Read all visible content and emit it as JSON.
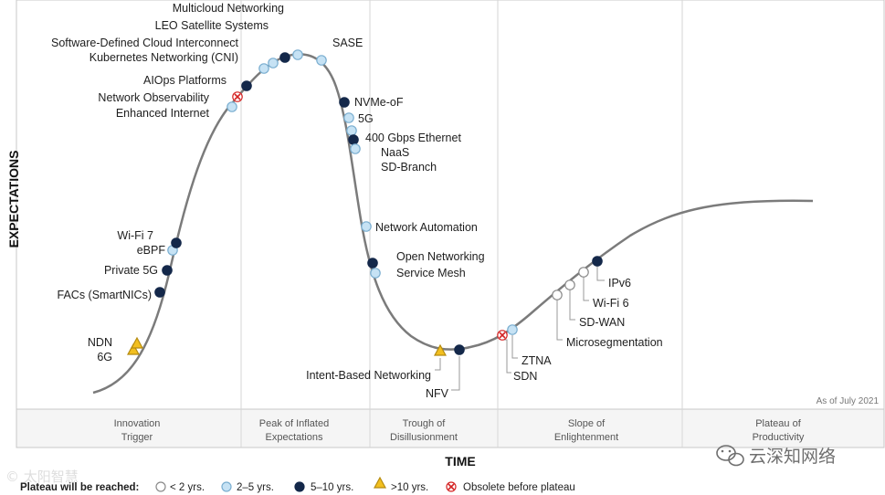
{
  "axis": {
    "y_title": "EXPECTATIONS",
    "x_title": "TIME"
  },
  "as_of": "As of July 2021",
  "phases": [
    {
      "line1": "Innovation",
      "line2": "Trigger"
    },
    {
      "line1": "Peak of Inflated",
      "line2": "Expectations"
    },
    {
      "line1": "Trough of",
      "line2": "Disillusionment"
    },
    {
      "line1": "Slope of",
      "line2": "Enlightenment"
    },
    {
      "line1": "Plateau of",
      "line2": "Productivity"
    }
  ],
  "legend": {
    "title": "Plateau will be reached:",
    "items": [
      {
        "marker": "white-circle",
        "label": "< 2 yrs."
      },
      {
        "marker": "light-blue-circle",
        "label": "2–5 yrs."
      },
      {
        "marker": "dark-blue-circle",
        "label": "5–10 yrs."
      },
      {
        "marker": "yellow-triangle",
        "label": ">10 yrs."
      },
      {
        "marker": "red-x-circle",
        "label": "Obsolete before plateau"
      }
    ]
  },
  "colors": {
    "white": "#ffffff",
    "light_blue": "#c6e2f4",
    "dark_blue": "#14284a",
    "yellow": "#f2bf1f",
    "red": "#d42424",
    "curve": "#7b7b7b"
  },
  "technologies": [
    {
      "name": "6G",
      "marker": "yellow-triangle"
    },
    {
      "name": "NDN",
      "marker": "yellow-triangle"
    },
    {
      "name": "FACs (SmartNICs)",
      "marker": "dark-blue-circle"
    },
    {
      "name": "Private 5G",
      "marker": "dark-blue-circle"
    },
    {
      "name": "eBPF",
      "marker": "light-blue-circle"
    },
    {
      "name": "Wi-Fi 7",
      "marker": "dark-blue-circle"
    },
    {
      "name": "Enhanced Internet",
      "marker": "light-blue-circle"
    },
    {
      "name": "Network Observability",
      "marker": "red-x-circle"
    },
    {
      "name": "AIOps Platforms",
      "marker": "dark-blue-circle"
    },
    {
      "name": "Kubernetes Networking (CNI)",
      "marker": "light-blue-circle"
    },
    {
      "name": "Software-Defined Cloud Interconnect",
      "marker": "light-blue-circle"
    },
    {
      "name": "LEO Satellite Systems",
      "marker": "dark-blue-circle"
    },
    {
      "name": "Multicloud Networking",
      "marker": "light-blue-circle"
    },
    {
      "name": "SASE",
      "marker": "light-blue-circle"
    },
    {
      "name": "NVMe-oF",
      "marker": "dark-blue-circle"
    },
    {
      "name": "5G",
      "marker": "light-blue-circle"
    },
    {
      "name": "400 Gbps Ethernet",
      "marker": "light-blue-circle"
    },
    {
      "name": "NaaS",
      "marker": "dark-blue-circle"
    },
    {
      "name": "SD-Branch",
      "marker": "light-blue-circle"
    },
    {
      "name": "Network Automation",
      "marker": "light-blue-circle"
    },
    {
      "name": "Open Networking",
      "marker": "dark-blue-circle"
    },
    {
      "name": "Service Mesh",
      "marker": "light-blue-circle"
    },
    {
      "name": "Intent-Based Networking",
      "marker": "yellow-triangle"
    },
    {
      "name": "NFV",
      "marker": "dark-blue-circle"
    },
    {
      "name": "SDN",
      "marker": "red-x-circle"
    },
    {
      "name": "ZTNA",
      "marker": "light-blue-circle"
    },
    {
      "name": "Microsegmentation",
      "marker": "white-circle"
    },
    {
      "name": "SD-WAN",
      "marker": "white-circle"
    },
    {
      "name": "Wi-Fi 6",
      "marker": "white-circle"
    },
    {
      "name": "IPv6",
      "marker": "dark-blue-circle"
    }
  ],
  "watermark_right": "云深知网络",
  "watermark_left": "© 太阳智慧"
}
